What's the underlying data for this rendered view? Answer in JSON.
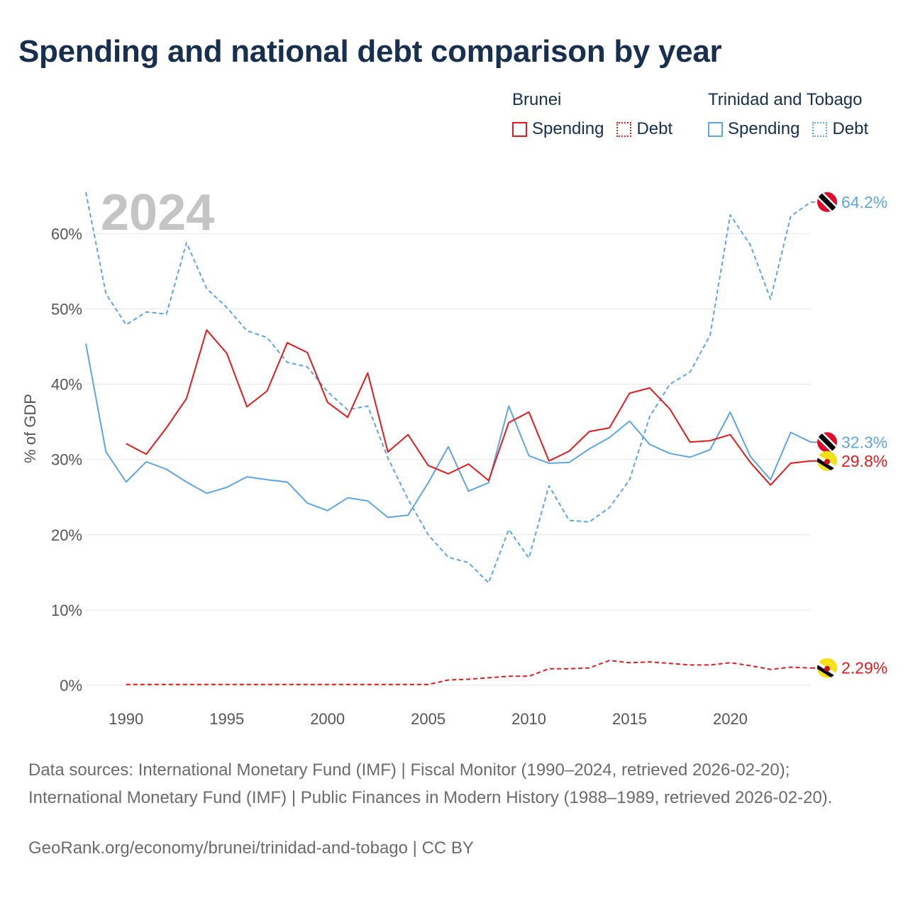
{
  "title": "Spending and national debt comparison by year",
  "legend": {
    "groups": [
      {
        "country": "Brunei",
        "spending_label": "Spending",
        "debt_label": "Debt",
        "color": "#e41a1c"
      },
      {
        "country": "Trinidad and Tobago",
        "spending_label": "Spending",
        "debt_label": "Debt",
        "color": "#5da5e3"
      }
    ]
  },
  "chart_data": {
    "type": "line",
    "year_watermark": "2024",
    "ylabel": "% of GDP",
    "xlabel": "",
    "xlim": [
      1988,
      2024
    ],
    "ylim": [
      0,
      65
    ],
    "grid": true,
    "x_ticks": [
      1990,
      1995,
      2000,
      2005,
      2010,
      2015,
      2020
    ],
    "y_ticks": [
      0,
      10,
      20,
      30,
      40,
      50,
      60
    ],
    "y_tick_labels": [
      "0%",
      "10%",
      "20%",
      "30%",
      "40%",
      "50%",
      "60%"
    ],
    "x_tick_labels": [
      "1990",
      "1995",
      "2000",
      "2005",
      "2010",
      "2015",
      "2020"
    ],
    "series": [
      {
        "name": "Trinidad and Tobago Debt",
        "country": "Trinidad and Tobago",
        "metric": "Debt",
        "color": "#5da5e3",
        "dashed": true,
        "end_label": "64.2%",
        "flag": "tt-flag",
        "x": [
          1988,
          1989,
          1990,
          1991,
          1992,
          1993,
          1994,
          1995,
          1996,
          1997,
          1998,
          1999,
          2000,
          2001,
          2002,
          2003,
          2004,
          2005,
          2006,
          2007,
          2008,
          2009,
          2010,
          2011,
          2012,
          2013,
          2014,
          2015,
          2016,
          2017,
          2018,
          2019,
          2020,
          2021,
          2022,
          2023,
          2024
        ],
        "values": [
          65.5,
          52.0,
          47.9,
          49.6,
          49.3,
          58.8,
          52.7,
          50.2,
          47.1,
          46.2,
          42.9,
          42.3,
          39.0,
          36.6,
          37.1,
          30.2,
          24.7,
          20.0,
          17.0,
          16.3,
          13.6,
          20.7,
          16.9,
          26.5,
          21.9,
          21.7,
          23.6,
          27.3,
          35.7,
          40.0,
          41.6,
          46.5,
          62.5,
          58.5,
          51.3,
          62.3,
          64.2
        ]
      },
      {
        "name": "Trinidad and Tobago Spending",
        "country": "Trinidad and Tobago",
        "metric": "Spending",
        "color": "#5da5e3",
        "dashed": false,
        "end_label": "32.3%",
        "flag": "tt-flag",
        "x": [
          1988,
          1989,
          1990,
          1991,
          1992,
          1993,
          1994,
          1995,
          1996,
          1997,
          1998,
          1999,
          2000,
          2001,
          2002,
          2003,
          2004,
          2005,
          2006,
          2007,
          2008,
          2009,
          2010,
          2011,
          2012,
          2013,
          2014,
          2015,
          2016,
          2017,
          2018,
          2019,
          2020,
          2021,
          2022,
          2023,
          2024
        ],
        "values": [
          45.4,
          31.0,
          27.0,
          29.7,
          28.7,
          27.0,
          25.5,
          26.3,
          27.7,
          27.3,
          27.0,
          24.2,
          23.2,
          24.9,
          24.5,
          22.3,
          22.6,
          26.9,
          31.7,
          25.8,
          26.9,
          37.1,
          30.5,
          29.5,
          29.6,
          31.4,
          32.9,
          35.1,
          32.0,
          30.8,
          30.3,
          31.3,
          36.3,
          30.4,
          27.3,
          33.6,
          32.3
        ]
      },
      {
        "name": "Brunei Spending",
        "country": "Brunei",
        "metric": "Spending",
        "color": "#e41a1c",
        "dashed": false,
        "end_label": "29.8%",
        "flag": "bn-flag",
        "x": [
          1990,
          1991,
          1992,
          1993,
          1994,
          1995,
          1996,
          1997,
          1998,
          1999,
          2000,
          2001,
          2002,
          2003,
          2004,
          2005,
          2006,
          2007,
          2008,
          2009,
          2010,
          2011,
          2012,
          2013,
          2014,
          2015,
          2016,
          2017,
          2018,
          2019,
          2020,
          2021,
          2022,
          2023,
          2024
        ],
        "values": [
          32.1,
          30.7,
          34.2,
          38.1,
          47.2,
          44.1,
          37.0,
          39.1,
          45.5,
          44.2,
          37.6,
          35.6,
          41.5,
          31.0,
          33.3,
          29.2,
          28.1,
          29.4,
          27.2,
          34.9,
          36.3,
          29.8,
          31.1,
          33.7,
          34.2,
          38.8,
          39.5,
          36.7,
          32.3,
          32.5,
          33.3,
          29.6,
          26.6,
          29.5,
          29.8
        ]
      },
      {
        "name": "Brunei Debt",
        "country": "Brunei",
        "metric": "Debt",
        "color": "#e41a1c",
        "dashed": true,
        "end_label": "2.29%",
        "flag": "bn-flag",
        "x": [
          1990,
          1991,
          1992,
          1993,
          1994,
          1995,
          1996,
          1997,
          1998,
          1999,
          2000,
          2001,
          2002,
          2003,
          2004,
          2005,
          2006,
          2007,
          2008,
          2009,
          2010,
          2011,
          2012,
          2013,
          2014,
          2015,
          2016,
          2017,
          2018,
          2019,
          2020,
          2021,
          2022,
          2023,
          2024
        ],
        "values": [
          0.1,
          0.1,
          0.1,
          0.1,
          0.1,
          0.1,
          0.1,
          0.1,
          0.1,
          0.1,
          0.1,
          0.1,
          0.1,
          0.1,
          0.1,
          0.1,
          0.7,
          0.8,
          1.0,
          1.2,
          1.2,
          2.2,
          2.2,
          2.3,
          3.3,
          3.0,
          3.1,
          2.9,
          2.7,
          2.7,
          3.0,
          2.6,
          2.1,
          2.4,
          2.29
        ]
      }
    ]
  },
  "sources_text": "Data sources: International Monetary Fund (IMF) | Fiscal Monitor (1990–2024, retrieved 2026-02-20); International Monetary Fund (IMF) | Public Finances in Modern History (1988–1989, retrieved 2026-02-20).",
  "site_text": "GeoRank.org/economy/brunei/trinidad-and-tobago | CC BY"
}
